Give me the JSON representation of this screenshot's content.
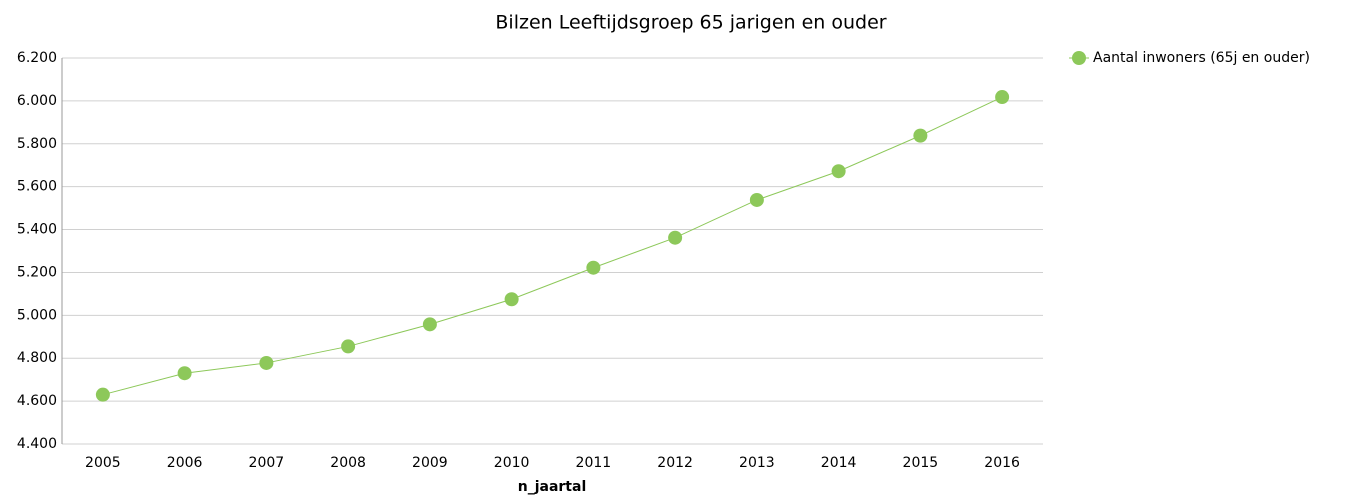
{
  "chart_data": {
    "type": "line",
    "title": "Bilzen  Leeftijdsgroep 65 jarigen en ouder",
    "x_label": "n_jaartal",
    "categories": [
      "2005",
      "2006",
      "2007",
      "2008",
      "2009",
      "2010",
      "2011",
      "2012",
      "2013",
      "2014",
      "2015",
      "2016"
    ],
    "series": [
      {
        "name": "Aantal inwoners (65j en ouder)",
        "color": "#8dc85a",
        "values": [
          4630,
          4730,
          4778,
          4855,
          4958,
          5075,
          5222,
          5362,
          5538,
          5672,
          5838,
          6018
        ]
      }
    ],
    "ylim": [
      4400,
      6200
    ],
    "yticks": [
      {
        "value": 4400,
        "label": "4.400"
      },
      {
        "value": 4600,
        "label": "4.600"
      },
      {
        "value": 4800,
        "label": "4.800"
      },
      {
        "value": 5000,
        "label": "5.000"
      },
      {
        "value": 5200,
        "label": "5.200"
      },
      {
        "value": 5400,
        "label": "5.400"
      },
      {
        "value": 5600,
        "label": "5.600"
      },
      {
        "value": 5800,
        "label": "5.800"
      },
      {
        "value": 6000,
        "label": "6.000"
      },
      {
        "value": 6200,
        "label": "6.200"
      }
    ],
    "grid": true,
    "legend": "right"
  }
}
